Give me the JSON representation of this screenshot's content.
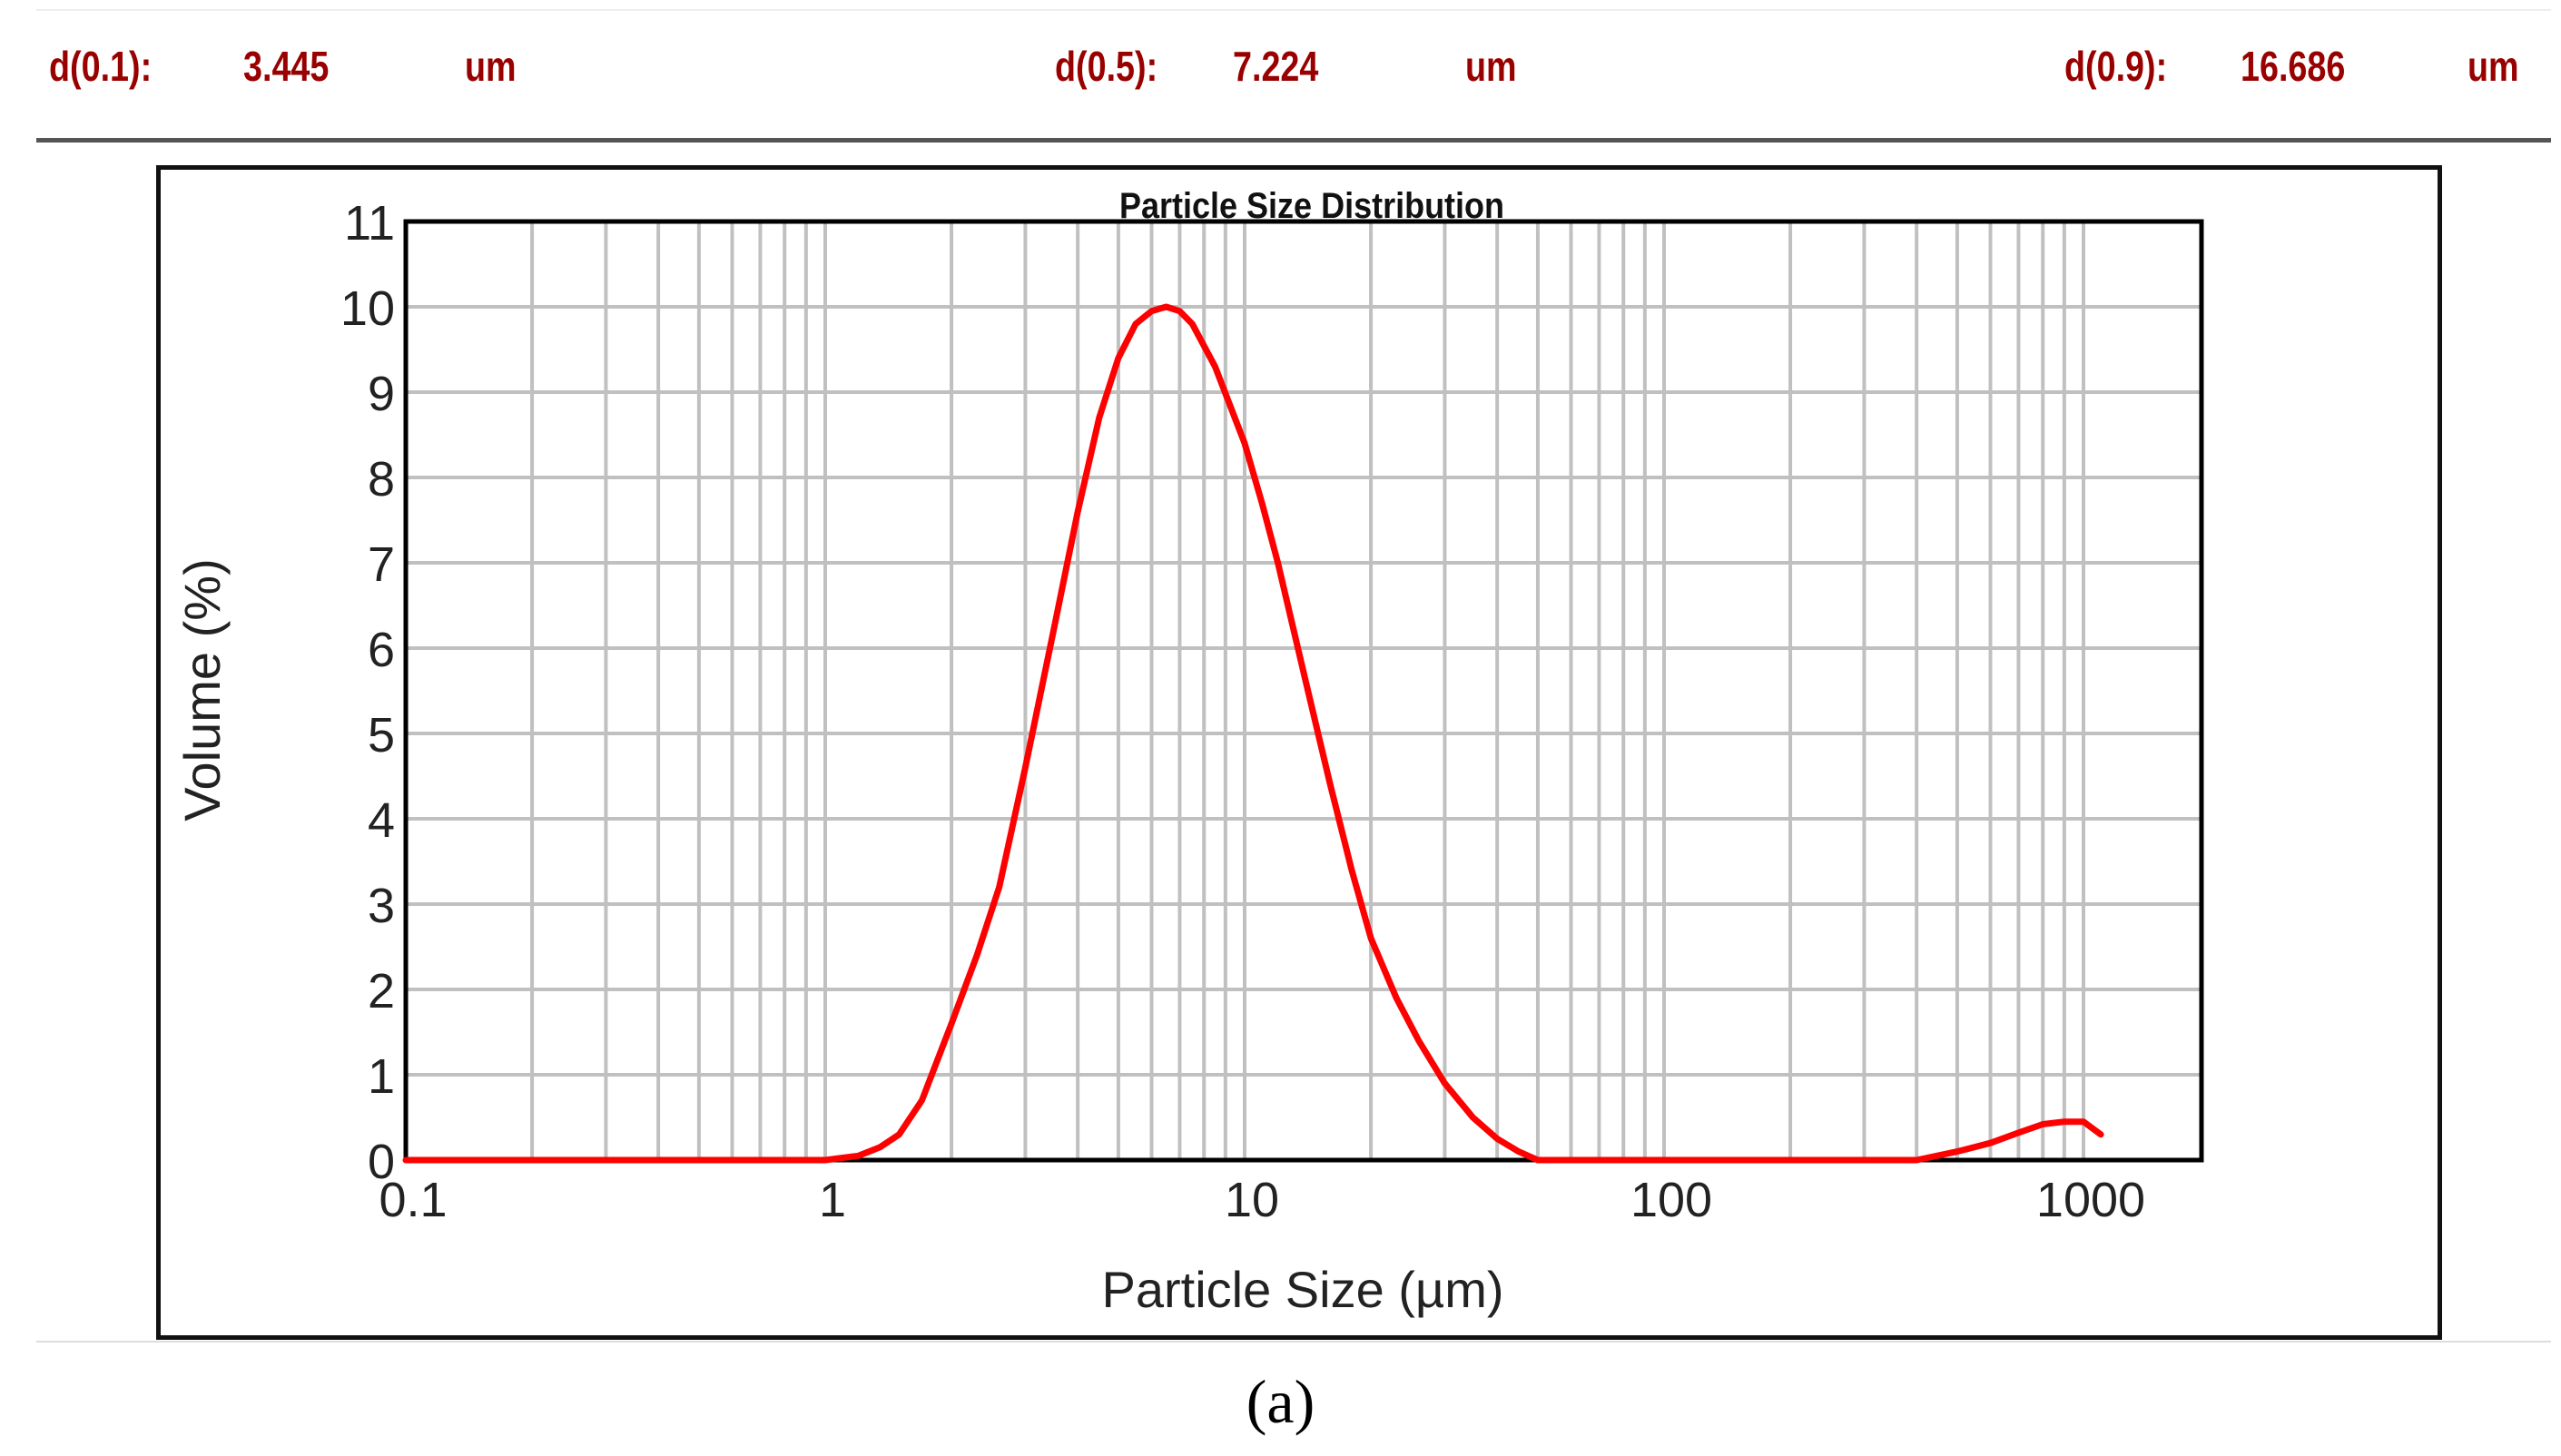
{
  "header": {
    "d10_label": "d(0.1):",
    "d10_value": "3.445",
    "d10_unit": "um",
    "d50_label": "d(0.5):",
    "d50_value": "7.224",
    "d50_unit": "um",
    "d90_label": "d(0.9):",
    "d90_value": "16.686",
    "d90_unit": "um"
  },
  "caption": "(a)",
  "colors": {
    "header_text": "#990000",
    "curve": "#ff0000",
    "grid": "#c0c0c0",
    "axis": "#000000"
  },
  "chart_data": {
    "type": "line",
    "title": "Particle Size Distribution",
    "xlabel": "Particle Size (µm)",
    "ylabel": "Volume (%)",
    "xscale": "log",
    "xlim": [
      0.1,
      2000
    ],
    "ylim": [
      0,
      11
    ],
    "x_ticks": [
      "0.1",
      "1",
      "10",
      "100",
      "1000"
    ],
    "y_ticks": [
      "0",
      "1",
      "2",
      "3",
      "4",
      "5",
      "6",
      "7",
      "8",
      "9",
      "10",
      "11"
    ],
    "grid": true,
    "legend": null,
    "series": [
      {
        "name": "Volume",
        "color": "#ff0000",
        "x": [
          0.1,
          0.13,
          0.5,
          1.0,
          1.2,
          1.35,
          1.5,
          1.7,
          2.0,
          2.3,
          2.6,
          3.0,
          3.5,
          4.0,
          4.5,
          5.0,
          5.5,
          6.0,
          6.5,
          7.0,
          7.5,
          8.5,
          10,
          11,
          12,
          14,
          16,
          18,
          20,
          23,
          26,
          30,
          35,
          40,
          45,
          50,
          100,
          200,
          400,
          500,
          600,
          700,
          800,
          900,
          1000,
          1100
        ],
        "values": [
          0,
          0,
          0,
          0,
          0.05,
          0.15,
          0.3,
          0.7,
          1.6,
          2.4,
          3.2,
          4.6,
          6.2,
          7.6,
          8.7,
          9.4,
          9.8,
          9.95,
          10.0,
          9.95,
          9.8,
          9.3,
          8.4,
          7.7,
          7.0,
          5.6,
          4.4,
          3.4,
          2.6,
          1.9,
          1.4,
          0.9,
          0.5,
          0.25,
          0.1,
          0,
          0,
          0,
          0,
          0.1,
          0.2,
          0.32,
          0.42,
          0.45,
          0.45,
          0.3
        ]
      }
    ]
  }
}
